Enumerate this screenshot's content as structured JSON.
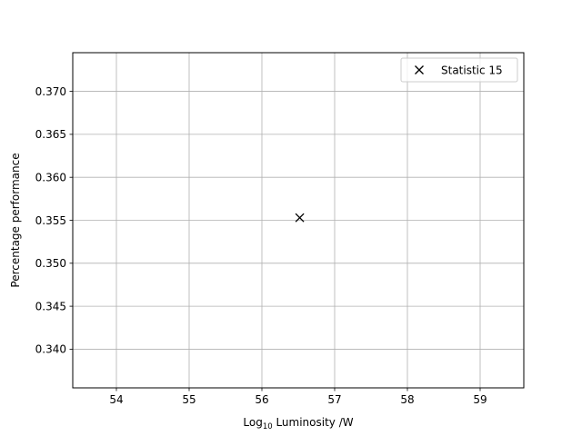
{
  "chart_data": {
    "type": "scatter",
    "title": "",
    "xlabel_prefix": "Log",
    "xlabel_sub": "10",
    "xlabel_suffix": " Luminosity /W",
    "ylabel": "Percentage performance",
    "xlim": [
      53.4,
      59.6
    ],
    "ylim": [
      0.3355,
      0.3745
    ],
    "xticks": [
      54,
      55,
      56,
      57,
      58,
      59
    ],
    "yticks": [
      0.34,
      0.345,
      0.35,
      0.355,
      0.36,
      0.365,
      0.37
    ],
    "grid": true,
    "legend_position": "top-right",
    "series": [
      {
        "name": "Statistic 15",
        "marker": "x",
        "color": "#000000",
        "points": [
          {
            "x": 56.52,
            "y": 0.3553
          }
        ]
      }
    ]
  }
}
